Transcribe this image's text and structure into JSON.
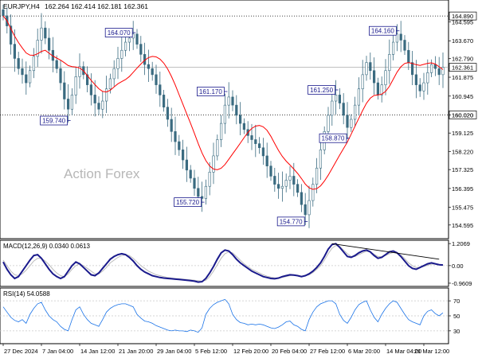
{
  "chart_data": [
    {
      "type": "candlestick",
      "title": "EURJPY,H4",
      "ohlc_label": "162.264 162.414 162.181 162.361",
      "watermark": "Action Forex",
      "ylim": [
        154.0,
        165.6
      ],
      "y_ticks": [
        154.595,
        155.475,
        156.395,
        157.325,
        158.22,
        159.125,
        160.02,
        160.945,
        161.875,
        162.79,
        163.67,
        164.595
      ],
      "y_tick_labels": [
        "154.595",
        "155.475",
        "156.395",
        "157.325",
        "158.220",
        "159.125",
        "160.020",
        "160.945",
        "161.875",
        "162.790",
        "163.670",
        "164.595"
      ],
      "last_price": 162.361,
      "last_price_label": "162.361",
      "level_lines": [
        {
          "value": 164.89,
          "label": "164.890",
          "style": "dotted"
        },
        {
          "value": 160.02,
          "label": "160.020",
          "style": "dotted"
        }
      ],
      "annotations": [
        {
          "label": "164.070",
          "index": 34,
          "value": 164.07
        },
        {
          "label": "159.740",
          "index": 17,
          "value": 159.74
        },
        {
          "label": "161.170",
          "index": 58,
          "value": 161.17
        },
        {
          "label": "155.720",
          "index": 52,
          "value": 155.72
        },
        {
          "label": "154.770",
          "index": 79,
          "value": 154.77
        },
        {
          "label": "161.250",
          "index": 87,
          "value": 161.25
        },
        {
          "label": "158.870",
          "index": 90,
          "value": 158.87
        },
        {
          "label": "164.160",
          "index": 103,
          "value": 164.16
        }
      ],
      "closes": [
        164.9,
        164.4,
        163.5,
        162.8,
        162.3,
        162.0,
        161.6,
        162.2,
        162.9,
        163.7,
        164.3,
        163.8,
        163.2,
        162.7,
        162.3,
        161.6,
        160.8,
        160.3,
        161.0,
        161.9,
        162.4,
        162.0,
        161.5,
        161.0,
        160.6,
        160.3,
        160.7,
        161.3,
        161.8,
        162.3,
        162.8,
        163.2,
        163.6,
        163.8,
        164.0,
        163.5,
        163.0,
        162.5,
        162.3,
        162.0,
        161.5,
        161.0,
        160.4,
        159.8,
        159.2,
        158.7,
        158.3,
        157.8,
        157.3,
        156.9,
        156.4,
        156.0,
        155.9,
        156.5,
        157.2,
        158.0,
        158.8,
        159.6,
        160.5,
        160.9,
        160.5,
        160.0,
        159.6,
        159.3,
        159.0,
        158.8,
        158.6,
        158.4,
        158.0,
        157.5,
        157.0,
        156.6,
        156.4,
        156.5,
        156.8,
        157.0,
        156.6,
        156.2,
        155.6,
        155.1,
        155.8,
        156.6,
        157.4,
        158.3,
        159.2,
        160.0,
        160.7,
        161.0,
        160.6,
        160.0,
        159.4,
        159.8,
        160.5,
        161.3,
        162.0,
        162.6,
        162.2,
        161.6,
        161.0,
        161.5,
        162.2,
        163.0,
        163.6,
        164.0,
        163.7,
        163.2,
        162.6,
        162.0,
        161.5,
        161.2,
        161.6,
        162.1,
        162.5,
        162.3,
        162.0,
        162.361
      ],
      "ma_label": "moving average (red)",
      "x_tick_labels": [
        "27 Dec 2024",
        "7 Jan 04:00",
        "14 Jan 12:00",
        "21 Jan 20:00",
        "29 Jan 04:00",
        "5 Feb 12:00",
        "12 Feb 20:00",
        "20 Feb 04:00",
        "27 Feb 12:00",
        "6 Mar 20:00",
        "14 Mar 04:00",
        "21 Mar 12:00"
      ],
      "x_tick_index": [
        0,
        10,
        20,
        30,
        40,
        50,
        60,
        70,
        80,
        90,
        100,
        110
      ]
    },
    {
      "type": "line",
      "title": "MACD(12,26,9) 0.0340 0.0613",
      "ylim": [
        -1.05,
        1.3
      ],
      "y_ticks": [
        1.2069,
        0.0,
        -0.9609
      ],
      "y_tick_labels": [
        "1.2069",
        "0.00",
        "-0.9609"
      ],
      "series": [
        {
          "name": "MACD",
          "values": [
            0.2,
            -0.2,
            -0.5,
            -0.7,
            -0.6,
            -0.3,
            0.0,
            0.3,
            0.55,
            0.6,
            0.4,
            0.1,
            -0.2,
            -0.45,
            -0.6,
            -0.7,
            -0.6,
            -0.3,
            0.0,
            0.2,
            0.1,
            -0.1,
            -0.3,
            -0.5,
            -0.55,
            -0.4,
            -0.15,
            0.1,
            0.35,
            0.5,
            0.6,
            0.65,
            0.6,
            0.45,
            0.25,
            0.0,
            -0.2,
            -0.35,
            -0.45,
            -0.55,
            -0.6,
            -0.65,
            -0.68,
            -0.7,
            -0.72,
            -0.74,
            -0.76,
            -0.78,
            -0.8,
            -0.82,
            -0.85,
            -0.9,
            -0.88,
            -0.7,
            -0.4,
            -0.05,
            0.35,
            0.7,
            0.85,
            0.8,
            0.6,
            0.35,
            0.15,
            0.0,
            -0.15,
            -0.3,
            -0.4,
            -0.5,
            -0.6,
            -0.65,
            -0.7,
            -0.72,
            -0.68,
            -0.6,
            -0.55,
            -0.5,
            -0.52,
            -0.55,
            -0.6,
            -0.55,
            -0.45,
            -0.3,
            -0.1,
            0.15,
            0.5,
            0.9,
            1.15,
            1.2,
            1.0,
            0.75,
            0.5,
            0.45,
            0.55,
            0.7,
            0.8,
            0.85,
            0.75,
            0.55,
            0.4,
            0.45,
            0.6,
            0.75,
            0.8,
            0.7,
            0.5,
            0.25,
            0.0,
            -0.15,
            -0.2,
            -0.1,
            0.0,
            0.1,
            0.15,
            0.1,
            0.05,
            0.034
          ]
        },
        {
          "name": "Signal",
          "values": [
            0.3,
            0.0,
            -0.3,
            -0.5,
            -0.55,
            -0.45,
            -0.25,
            0.0,
            0.25,
            0.4,
            0.4,
            0.25,
            0.05,
            -0.2,
            -0.4,
            -0.55,
            -0.6,
            -0.45,
            -0.2,
            0.0,
            0.1,
            0.0,
            -0.15,
            -0.3,
            -0.45,
            -0.45,
            -0.3,
            -0.1,
            0.15,
            0.3,
            0.45,
            0.55,
            0.6,
            0.55,
            0.4,
            0.2,
            0.0,
            -0.15,
            -0.3,
            -0.4,
            -0.5,
            -0.55,
            -0.6,
            -0.65,
            -0.68,
            -0.7,
            -0.72,
            -0.74,
            -0.76,
            -0.78,
            -0.8,
            -0.83,
            -0.85,
            -0.8,
            -0.6,
            -0.3,
            0.05,
            0.4,
            0.65,
            0.75,
            0.7,
            0.5,
            0.3,
            0.1,
            -0.05,
            -0.2,
            -0.3,
            -0.4,
            -0.5,
            -0.58,
            -0.63,
            -0.67,
            -0.68,
            -0.65,
            -0.6,
            -0.55,
            -0.53,
            -0.54,
            -0.57,
            -0.56,
            -0.5,
            -0.38,
            -0.2,
            0.0,
            0.3,
            0.65,
            0.95,
            1.1,
            1.05,
            0.85,
            0.65,
            0.5,
            0.5,
            0.6,
            0.7,
            0.78,
            0.75,
            0.62,
            0.5,
            0.48,
            0.55,
            0.65,
            0.72,
            0.7,
            0.58,
            0.38,
            0.15,
            0.0,
            -0.1,
            -0.1,
            -0.05,
            0.02,
            0.08,
            0.08,
            0.06,
            0.0613
          ]
        }
      ],
      "divergence_line": [
        {
          "index": 86,
          "value": 1.2
        },
        {
          "index": 114,
          "value": 0.35
        }
      ]
    },
    {
      "type": "line",
      "title": "RSI(14) 54.0588",
      "ylim": [
        15,
        85
      ],
      "y_ticks": [
        70,
        50,
        30
      ],
      "y_tick_labels": [
        "70",
        "50",
        "30"
      ],
      "series": [
        {
          "name": "RSI",
          "values": [
            62,
            55,
            48,
            44,
            42,
            45,
            40,
            52,
            60,
            66,
            68,
            58,
            50,
            45,
            42,
            36,
            32,
            30,
            45,
            58,
            62,
            52,
            45,
            40,
            38,
            36,
            45,
            55,
            60,
            63,
            65,
            66,
            66,
            64,
            62,
            52,
            47,
            43,
            42,
            40,
            37,
            35,
            33,
            31,
            30,
            31,
            30,
            30,
            29,
            31,
            30,
            28,
            34,
            52,
            60,
            65,
            68,
            70,
            72,
            66,
            52,
            45,
            41,
            40,
            38,
            39,
            38,
            39,
            38,
            36,
            34,
            33,
            35,
            38,
            42,
            43,
            38,
            36,
            32,
            30,
            45,
            55,
            62,
            66,
            68,
            70,
            70,
            66,
            52,
            44,
            40,
            48,
            58,
            65,
            68,
            70,
            58,
            48,
            42,
            52,
            60,
            66,
            70,
            68,
            60,
            52,
            45,
            42,
            40,
            38,
            50,
            56,
            58,
            53,
            50,
            54.0588
          ]
        }
      ]
    }
  ]
}
